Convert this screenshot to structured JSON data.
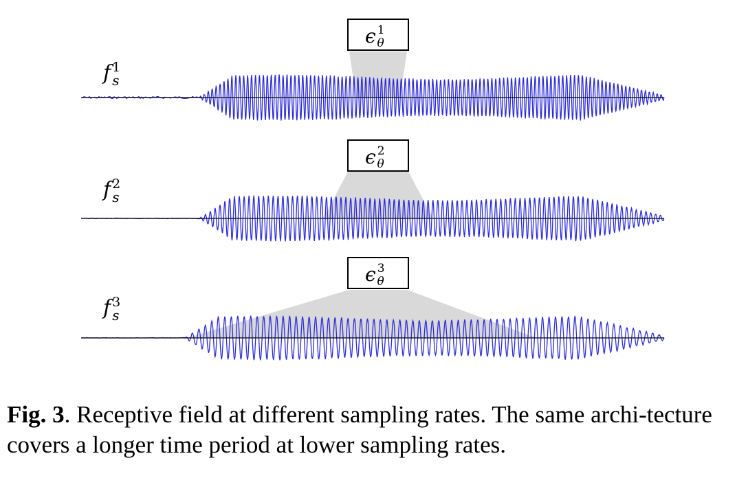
{
  "figure": {
    "rows": [
      {
        "rate_base": "f",
        "rate_sub": "s",
        "rate_sup": "1",
        "model_base": "ϵ",
        "model_sub": "θ",
        "model_sup": "1",
        "receptive_field_fraction": 0.11
      },
      {
        "rate_base": "f",
        "rate_sub": "s",
        "rate_sup": "2",
        "model_base": "ϵ",
        "model_sub": "θ",
        "model_sup": "2",
        "receptive_field_fraction": 0.2
      },
      {
        "rate_base": "f",
        "rate_sub": "s",
        "rate_sup": "3",
        "model_base": "ϵ",
        "model_sub": "θ",
        "model_sup": "3",
        "receptive_field_fraction": 0.59
      }
    ],
    "colors": {
      "waveform": "#2b2bdc",
      "receptive_field": "#d9d9d9",
      "box_border": "#000000",
      "baseline": "#000000"
    }
  },
  "caption": {
    "label": "Fig. 3",
    "text": ". Receptive field at different sampling rates. The same archi-tecture covers a longer time period at lower sampling rates."
  }
}
